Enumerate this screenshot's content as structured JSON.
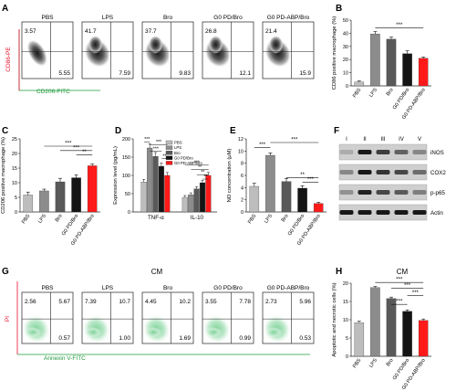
{
  "panels": {
    "A": {
      "letter": "A",
      "y_label": "CD86-PE",
      "x_label": "CD206-FITC",
      "plots": [
        {
          "title": "PBS",
          "ul": "3.57",
          "lr": "5.55"
        },
        {
          "title": "LPS",
          "ul": "41.7",
          "lr": "7.59"
        },
        {
          "title": "Bro",
          "ul": "37.7",
          "lr": "9.83"
        },
        {
          "title": "G0 PD/Bro",
          "ul": "26.8",
          "lr": "12.1"
        },
        {
          "title": "G0 PD-ABP/Bro",
          "ul": "21.4",
          "lr": "15.9"
        }
      ]
    },
    "G": {
      "letter": "G",
      "header": "CM",
      "y_label": "PI",
      "x_label": "Annexin V-FITC",
      "plots": [
        {
          "title": "PBS",
          "ul": "2.56",
          "ur": "5.67",
          "lr": "0.57"
        },
        {
          "title": "LPS",
          "ul": "7.39",
          "ur": "10.7",
          "lr": "1.00"
        },
        {
          "title": "Bro",
          "ul": "4.45",
          "ur": "10.2",
          "lr": "1.69"
        },
        {
          "title": "G0 PD/Bro",
          "ul": "3.55",
          "ur": "7.78",
          "lr": "0.99"
        },
        {
          "title": "G0 PD-ABP/Bro",
          "ul": "2.73",
          "ur": "5.96",
          "lr": "0.53"
        }
      ]
    },
    "F": {
      "letter": "F",
      "lanes": [
        "I",
        "II",
        "III",
        "IV",
        "V"
      ],
      "bands": [
        "iNOS",
        "COX2",
        "p-p65",
        "Actin"
      ]
    }
  },
  "colors": {
    "PBS": "#bdbdbd",
    "LPS": "#8c8c8c",
    "Bro": "#595959",
    "G0PD": "#141414",
    "G0PDABP": "#ff1a1a",
    "red_axis": "#e8102a",
    "green_axis": "#1f9a3c"
  },
  "chart_data": [
    {
      "panel": "B",
      "letter": "B",
      "type": "bar",
      "ylabel": "CD86 positive macrophage (%)",
      "ylim": [
        0,
        50
      ],
      "yticks": [
        "0",
        "10",
        "20",
        "30",
        "40",
        "50"
      ],
      "categories": [
        "PBS",
        "LPS",
        "Bro",
        "G0 PD/Bro",
        "G0 PD-ABP/Bro"
      ],
      "values": [
        3,
        39.5,
        35.5,
        24.5,
        21
      ],
      "errors": [
        0.8,
        1.8,
        1.6,
        2.2,
        1.0
      ],
      "sig": [
        "***"
      ]
    },
    {
      "panel": "C",
      "letter": "C",
      "type": "bar",
      "ylabel": "CD206 positive macrophage (%)",
      "ylim": [
        0,
        25
      ],
      "yticks": [
        "0",
        "5",
        "10",
        "15",
        "20",
        "25"
      ],
      "categories": [
        "PBS",
        "LPS",
        "Bro",
        "G0 PD/Bro",
        "G0 PD-ABP/Bro"
      ],
      "values": [
        5.8,
        7.2,
        10.3,
        11.7,
        15.8
      ],
      "errors": [
        1.0,
        0.6,
        1.2,
        1.0,
        0.6
      ],
      "sig": [
        "**",
        "***",
        "***"
      ]
    },
    {
      "panel": "D",
      "letter": "D",
      "type": "bar",
      "ylabel": "Expression level (pg/mL)",
      "ylim": [
        0,
        200
      ],
      "yticks": [
        "0",
        "50",
        "100",
        "150",
        "200"
      ],
      "categories": [
        "TNF-α",
        "IL-10"
      ],
      "series": [
        {
          "name": "PBS",
          "values": [
            82,
            40
          ]
        },
        {
          "name": "LPS",
          "values": [
            175,
            47
          ]
        },
        {
          "name": "Bro",
          "values": [
            152,
            63
          ]
        },
        {
          "name": "G0 PD/Bro",
          "values": [
            125,
            80
          ]
        },
        {
          "name": "G0 PD-ABP/Bro",
          "values": [
            100,
            100
          ]
        }
      ],
      "sig": [
        "***",
        "***",
        "***",
        "**",
        "***",
        "**",
        "**",
        "**"
      ]
    },
    {
      "panel": "E",
      "letter": "E",
      "type": "bar",
      "ylabel": "NO concentration (μM)",
      "ylim": [
        0,
        12
      ],
      "yticks": [
        "0",
        "2",
        "4",
        "6",
        "8",
        "10",
        "12"
      ],
      "categories": [
        "PBS",
        "LPS",
        "Bro",
        "G0 PD/Bro",
        "G0 PD-ABP/Bro"
      ],
      "values": [
        4.2,
        9.3,
        5.0,
        3.9,
        1.4
      ],
      "errors": [
        0.5,
        0.4,
        0.5,
        0.4,
        0.2
      ],
      "sig": [
        "***",
        "***",
        "**",
        "***"
      ]
    },
    {
      "panel": "H",
      "letter": "H",
      "type": "bar",
      "title": "CM",
      "ylabel": "Apoptotic and necrotic cells (%)",
      "ylim": [
        0,
        20
      ],
      "yticks": [
        "0",
        "5",
        "10",
        "15",
        "20"
      ],
      "categories": [
        "PBS",
        "LPS",
        "Bro",
        "G0 PD/Bro",
        "G0 PD-ABP/Bro"
      ],
      "values": [
        9.2,
        18.8,
        15.8,
        12.3,
        9.8
      ],
      "errors": [
        0.4,
        0.3,
        0.4,
        0.4,
        0.4
      ],
      "sig": [
        "***",
        "***",
        "***",
        "***"
      ]
    }
  ]
}
